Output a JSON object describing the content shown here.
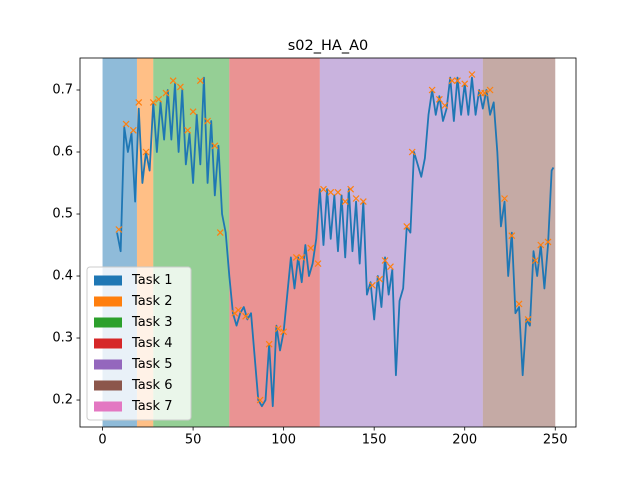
{
  "chart_data": {
    "type": "line",
    "title": "s02_HA_A0",
    "x": [
      8,
      10,
      12,
      14,
      16,
      18,
      20,
      22,
      24,
      26,
      28,
      30,
      32,
      34,
      36,
      38,
      40,
      42,
      44,
      46,
      48,
      50,
      52,
      54,
      56,
      58,
      60,
      62,
      64,
      66,
      68,
      70,
      72,
      74,
      76,
      78,
      80,
      82,
      84,
      86,
      88,
      90,
      92,
      94,
      96,
      98,
      100,
      102,
      104,
      106,
      108,
      110,
      112,
      114,
      116,
      118,
      120,
      122,
      124,
      126,
      128,
      130,
      132,
      134,
      136,
      138,
      140,
      142,
      144,
      146,
      148,
      150,
      152,
      154,
      156,
      158,
      160,
      162,
      164,
      166,
      168,
      170,
      172,
      174,
      176,
      178,
      180,
      182,
      184,
      186,
      188,
      190,
      192,
      194,
      196,
      198,
      200,
      202,
      204,
      206,
      208,
      210,
      212,
      214,
      216,
      218,
      220,
      222,
      224,
      226,
      228,
      230,
      232,
      234,
      236,
      238,
      240,
      242,
      244,
      246,
      248,
      249
    ],
    "values": [
      0.47,
      0.44,
      0.64,
      0.6,
      0.63,
      0.52,
      0.67,
      0.55,
      0.6,
      0.57,
      0.68,
      0.6,
      0.68,
      0.62,
      0.7,
      0.62,
      0.71,
      0.6,
      0.7,
      0.58,
      0.63,
      0.55,
      0.66,
      0.58,
      0.72,
      0.55,
      0.65,
      0.53,
      0.61,
      0.5,
      0.47,
      0.4,
      0.34,
      0.32,
      0.34,
      0.35,
      0.33,
      0.34,
      0.27,
      0.2,
      0.19,
      0.2,
      0.29,
      0.19,
      0.32,
      0.28,
      0.31,
      0.37,
      0.43,
      0.38,
      0.43,
      0.39,
      0.45,
      0.4,
      0.42,
      0.46,
      0.54,
      0.45,
      0.54,
      0.46,
      0.53,
      0.44,
      0.53,
      0.43,
      0.54,
      0.44,
      0.52,
      0.42,
      0.52,
      0.37,
      0.39,
      0.33,
      0.4,
      0.35,
      0.43,
      0.37,
      0.41,
      0.24,
      0.36,
      0.38,
      0.48,
      0.47,
      0.6,
      0.58,
      0.56,
      0.59,
      0.66,
      0.7,
      0.66,
      0.69,
      0.65,
      0.67,
      0.72,
      0.65,
      0.72,
      0.66,
      0.71,
      0.66,
      0.72,
      0.66,
      0.7,
      0.67,
      0.7,
      0.66,
      0.68,
      0.6,
      0.48,
      0.52,
      0.4,
      0.47,
      0.34,
      0.35,
      0.24,
      0.33,
      0.32,
      0.44,
      0.4,
      0.45,
      0.38,
      0.45,
      0.57,
      0.575
    ],
    "color": "#1f77b4",
    "markers": {
      "color": "#ff7f0e",
      "x": [
        9,
        13,
        17,
        20,
        24,
        28,
        31,
        35,
        39,
        43,
        47,
        50,
        54,
        58,
        62,
        65,
        73,
        75,
        79,
        87,
        92,
        97,
        100,
        107,
        110,
        115,
        119,
        122,
        126,
        130,
        134,
        137,
        140,
        144,
        149,
        153,
        156,
        159,
        168,
        171,
        182,
        186,
        189,
        193,
        196,
        200,
        204,
        209,
        211,
        214,
        222,
        226,
        230,
        235,
        239,
        242,
        246
      ],
      "values": [
        0.475,
        0.645,
        0.635,
        0.68,
        0.6,
        0.68,
        0.685,
        0.695,
        0.715,
        0.705,
        0.635,
        0.665,
        0.715,
        0.65,
        0.61,
        0.47,
        0.34,
        0.345,
        0.335,
        0.2,
        0.29,
        0.315,
        0.31,
        0.43,
        0.43,
        0.445,
        0.42,
        0.54,
        0.535,
        0.535,
        0.52,
        0.54,
        0.525,
        0.52,
        0.385,
        0.395,
        0.425,
        0.415,
        0.48,
        0.6,
        0.7,
        0.685,
        0.675,
        0.715,
        0.715,
        0.71,
        0.725,
        0.695,
        0.695,
        0.7,
        0.525,
        0.465,
        0.355,
        0.33,
        0.425,
        0.45,
        0.455
      ]
    },
    "tasks": [
      {
        "name": "Task 1",
        "color": "#1f77b4",
        "span": [
          0,
          19
        ]
      },
      {
        "name": "Task 2",
        "color": "#ff7f0e",
        "span": [
          19,
          28
        ]
      },
      {
        "name": "Task 3",
        "color": "#2ca02c",
        "span": [
          28,
          70
        ]
      },
      {
        "name": "Task 4",
        "color": "#d62728",
        "span": [
          70,
          120
        ]
      },
      {
        "name": "Task 5",
        "color": "#9467bd",
        "span": [
          120,
          210
        ]
      },
      {
        "name": "Task 6",
        "color": "#8c564b",
        "span": [
          210,
          250
        ]
      },
      {
        "name": "Task 7",
        "color": "#e377c2"
      }
    ],
    "span_alpha": 0.5,
    "xlim": [
      -12.45,
      261.45
    ],
    "ylim": [
      0.1565,
      0.7516
    ],
    "xticks": [
      0,
      50,
      100,
      150,
      200,
      250
    ],
    "yticks": [
      0.2,
      0.3,
      0.4,
      0.5,
      0.6,
      0.7
    ],
    "legend": "lower left"
  }
}
